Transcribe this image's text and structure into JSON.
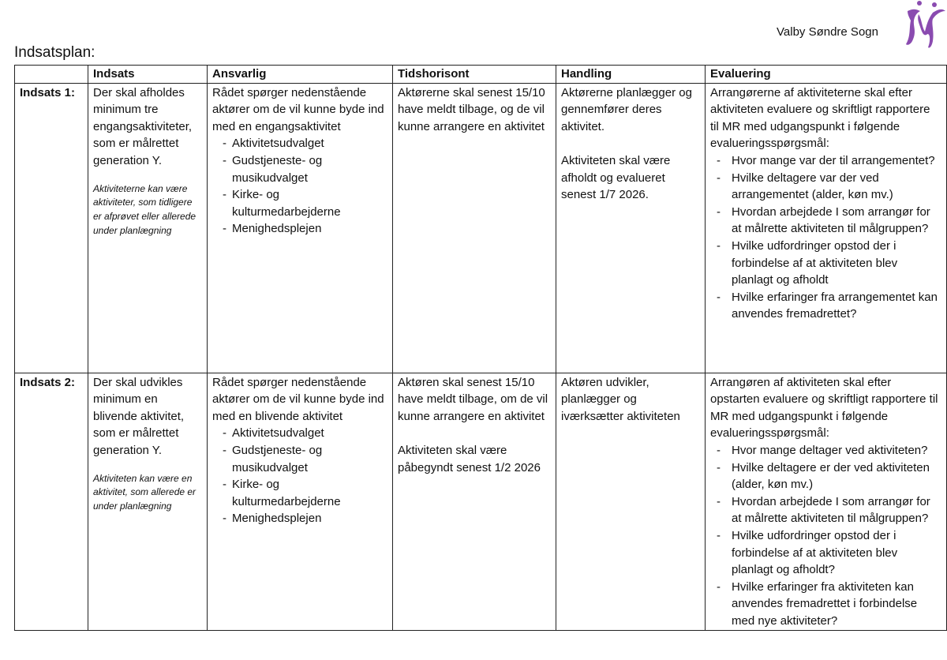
{
  "header": {
    "org_name": "Valby Søndre Sogn",
    "logo_color": "#8a4bb0"
  },
  "title": "Indsatsplan:",
  "table": {
    "columns": [
      "",
      "Indsats",
      "Ansvarlig",
      "Tidshorisont",
      "Handling",
      "Evaluering"
    ],
    "rows": [
      {
        "label": "Indsats 1:",
        "indsats": "Der skal afholdes minimum tre engangsaktiviteter, som er målrettet generation Y.",
        "indsats_note": "Aktiviteterne kan være aktiviteter, som tidligere er afprøvet eller allerede under planlægning",
        "ansvarlig_intro": "Rådet spørger nedenstående aktører om de vil kunne byde ind med en engangsaktivitet",
        "ansvarlig_items": [
          "Aktivitetsudvalget",
          "Gudstjeneste- og musikudvalget",
          "Kirke- og kulturmedarbejderne",
          "Menighedsplejen"
        ],
        "tidshorisont": [
          "Aktørerne skal senest 15/10 have meldt tilbage, og de vil kunne arrangere en aktivitet"
        ],
        "handling": [
          "Aktørerne planlægger og gennemfører deres aktivitet.",
          "Aktiviteten skal være afholdt og evalueret senest 1/7 2026."
        ],
        "evaluering_intro": "Arrangørerne af aktiviteterne skal efter aktiviteten evaluere og skriftligt rapportere til MR med udgangspunkt i følgende evalueringsspørgsmål:",
        "evaluering_items": [
          "Hvor mange var der til arrangementet?",
          "Hvilke deltagere var der ved arrangementet (alder, køn mv.)",
          "Hvordan arbejdede I som arrangør for at målrette aktiviteten til målgruppen?",
          "Hvilke udfordringer opstod der i forbindelse af at aktiviteten blev planlagt og afholdt",
          "Hvilke erfaringer fra arrangementet kan anvendes fremadrettet?"
        ]
      },
      {
        "label": "Indsats 2:",
        "indsats": "Der skal udvikles minimum en blivende aktivitet, som er målrettet generation Y.",
        "indsats_note": "Aktiviteten kan være en aktivitet, som allerede er under planlægning",
        "ansvarlig_intro": "Rådet spørger nedenstående aktører om de vil kunne byde ind med en blivende aktivitet",
        "ansvarlig_items": [
          "Aktivitetsudvalget",
          "Gudstjeneste- og musikudvalget",
          "Kirke- og kulturmedarbejderne",
          "Menighedsplejen"
        ],
        "tidshorisont": [
          "Aktøren skal senest 15/10 have meldt tilbage, om de vil kunne arrangere en aktivitet",
          "Aktiviteten skal være påbegyndt senest 1/2 2026"
        ],
        "handling": [
          "Aktøren udvikler, planlægger og iværksætter aktiviteten"
        ],
        "evaluering_intro": "Arrangøren af aktiviteten skal efter opstarten evaluere og skriftligt rapportere til MR med udgangspunkt i følgende evalueringsspørgsmål:",
        "evaluering_items": [
          "Hvor mange deltager ved aktiviteten?",
          "Hvilke deltagere er der ved aktiviteten (alder, køn mv.)",
          "Hvordan arbejdede I som arrangør for at målrette aktiviteten til målgruppen?",
          "Hvilke udfordringer opstod der i forbindelse af at aktiviteten blev planlagt og afholdt?",
          "Hvilke erfaringer fra aktiviteten kan anvendes fremadrettet i forbindelse med nye aktiviteter?"
        ]
      }
    ]
  }
}
